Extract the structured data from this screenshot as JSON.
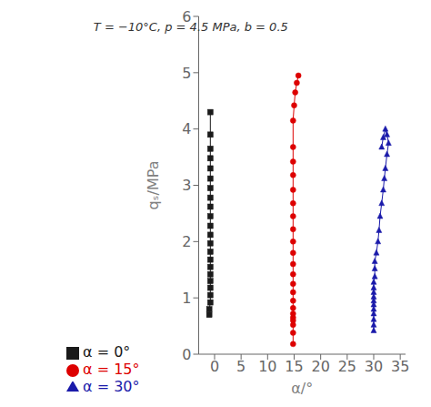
{
  "chart_data": {
    "type": "line",
    "xlabel": "α/°",
    "ylabel": "qₛ/MPa",
    "annotation": "T = −10°C, p = 4.5 MPa, b = 0.5",
    "xlim": [
      -3,
      36
    ],
    "ylim": [
      0,
      6
    ],
    "xticks": [
      0,
      5,
      10,
      15,
      20,
      25,
      30,
      35
    ],
    "yticks": [
      0,
      1,
      2,
      3,
      4,
      5,
      6
    ],
    "grid": false,
    "legend": "bottom",
    "series": [
      {
        "name": "α = 0°",
        "color": "#1a1a1a",
        "marker": "square",
        "line_style": "solid",
        "x": [
          -1.0,
          -1.0,
          -0.8,
          -0.8,
          -0.8,
          -0.8,
          -0.8,
          -0.8,
          -0.8,
          -0.8,
          -0.8,
          -0.8,
          -0.8,
          -0.8,
          -0.8,
          -0.8,
          -0.8,
          -0.8,
          -0.8,
          -0.8,
          -0.8,
          -0.8,
          -0.8
        ],
        "values": [
          0.7,
          0.8,
          0.92,
          1.05,
          1.18,
          1.3,
          1.42,
          1.55,
          1.68,
          1.82,
          1.97,
          2.12,
          2.28,
          2.45,
          2.62,
          2.78,
          2.95,
          3.12,
          3.3,
          3.48,
          3.65,
          3.9,
          4.3
        ]
      },
      {
        "name": "α = 15°",
        "color": "#dd0000",
        "marker": "circle",
        "line_style": "solid",
        "x": [
          14.8,
          14.8,
          14.8,
          14.8,
          14.8,
          14.8,
          14.8,
          14.8,
          14.8,
          14.8,
          14.8,
          14.8,
          14.8,
          14.8,
          14.8,
          14.8,
          14.8,
          14.8,
          14.8,
          14.8,
          14.8,
          14.8,
          15.0,
          15.2,
          15.5,
          15.8
        ],
        "values": [
          0.18,
          0.38,
          0.52,
          0.6,
          0.65,
          0.72,
          0.82,
          0.95,
          1.1,
          1.25,
          1.42,
          1.6,
          1.8,
          2.0,
          2.22,
          2.45,
          2.68,
          2.92,
          3.18,
          3.42,
          3.68,
          4.15,
          4.42,
          4.65,
          4.82,
          4.95
        ]
      },
      {
        "name": "α = 30°",
        "color": "#1a1aaa",
        "marker": "triangle",
        "line_style": "solid",
        "x": [
          30.0,
          30.0,
          30.0,
          30.0,
          30.0,
          30.0,
          30.0,
          30.0,
          30.0,
          30.0,
          30.0,
          30.2,
          30.2,
          30.2,
          30.5,
          30.8,
          31.0,
          31.2,
          31.5,
          31.8,
          32.0,
          32.2,
          32.5,
          32.8,
          32.5,
          32.2,
          31.8,
          31.5
        ],
        "values": [
          0.42,
          0.52,
          0.62,
          0.72,
          0.8,
          0.88,
          0.95,
          1.02,
          1.1,
          1.18,
          1.28,
          1.38,
          1.52,
          1.65,
          1.8,
          2.0,
          2.2,
          2.45,
          2.68,
          2.92,
          3.12,
          3.3,
          3.55,
          3.75,
          3.9,
          4.0,
          3.85,
          3.68
        ]
      }
    ]
  }
}
